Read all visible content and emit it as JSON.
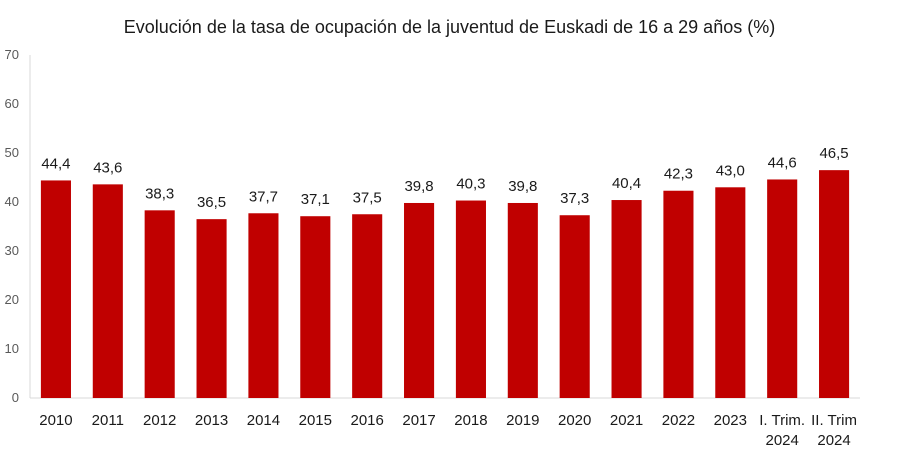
{
  "chart_data": {
    "type": "bar",
    "title": "Evolución de la tasa de ocupación de la juventud de Euskadi de 16 a 29 años (%)",
    "categories": [
      [
        "2010"
      ],
      [
        "2011"
      ],
      [
        "2012"
      ],
      [
        "2013"
      ],
      [
        "2014"
      ],
      [
        "2015"
      ],
      [
        "2016"
      ],
      [
        "2017"
      ],
      [
        "2018"
      ],
      [
        "2019"
      ],
      [
        "2020"
      ],
      [
        "2021"
      ],
      [
        "2022"
      ],
      [
        "2023"
      ],
      [
        "I. Trim.",
        "2024"
      ],
      [
        "II. Trim",
        "2024"
      ]
    ],
    "values": [
      44.4,
      43.6,
      38.3,
      36.5,
      37.7,
      37.1,
      37.5,
      39.8,
      40.3,
      39.8,
      37.3,
      40.4,
      42.3,
      43.0,
      44.6,
      46.5
    ],
    "data_labels": [
      "44,4",
      "43,6",
      "38,3",
      "36,5",
      "37,7",
      "37,1",
      "37,5",
      "39,8",
      "40,3",
      "39,8",
      "37,3",
      "40,4",
      "42,3",
      "43,0",
      "44,6",
      "46,5"
    ],
    "ylim": [
      0,
      70
    ],
    "yticks": [
      0,
      10,
      20,
      30,
      40,
      50,
      60,
      70
    ],
    "grid": false,
    "bar_color": "#c00000",
    "xlabel": "",
    "ylabel": ""
  }
}
